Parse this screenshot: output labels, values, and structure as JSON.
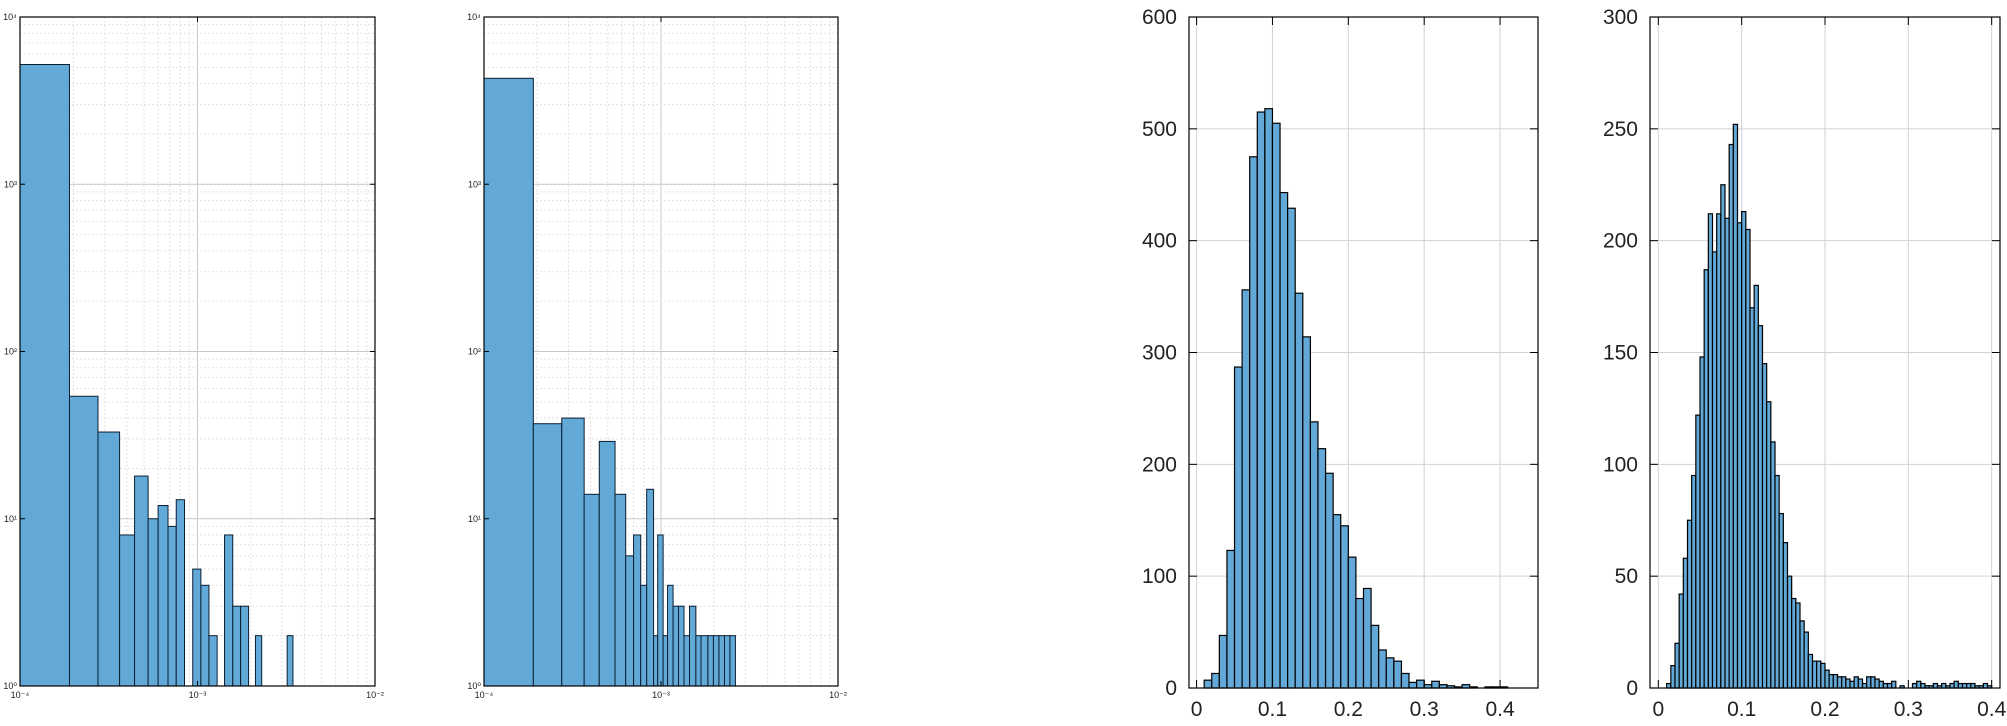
{
  "chart_data": [
    {
      "type": "bar",
      "xscale": "log",
      "yscale": "log",
      "xlim": [
        0.0001,
        0.01
      ],
      "ylim": [
        1,
        10000
      ],
      "grid": true,
      "color": "#62a9d8",
      "edge_color": "#0b1f33",
      "x_ticks": [
        {
          "value": 0.0001,
          "label": "10⁻⁴"
        },
        {
          "value": 0.001,
          "label": "10⁻³"
        },
        {
          "value": 0.01,
          "label": "10⁻²"
        }
      ],
      "y_ticks": [
        {
          "value": 1,
          "label": "10⁰"
        },
        {
          "value": 10,
          "label": "10¹"
        },
        {
          "value": 100,
          "label": "10²"
        },
        {
          "value": 1000,
          "label": "10³"
        },
        {
          "value": 10000,
          "label": "10⁴"
        }
      ],
      "bins": [
        [
          0.0001,
          0.00019,
          5200
        ],
        [
          0.00019,
          0.000275,
          54
        ],
        [
          0.000275,
          0.000364,
          33
        ],
        [
          0.000364,
          0.000442,
          8
        ],
        [
          0.000442,
          0.000527,
          18
        ],
        [
          0.000527,
          0.0006,
          10
        ],
        [
          0.0006,
          0.000682,
          12
        ],
        [
          0.000682,
          0.000759,
          9
        ],
        [
          0.000759,
          0.000845,
          13
        ],
        [
          0.000845,
          0.00094,
          1
        ],
        [
          0.00094,
          0.001045,
          5
        ],
        [
          0.001045,
          0.00116,
          4
        ],
        [
          0.00116,
          0.00129,
          2
        ],
        [
          0.00129,
          0.00142,
          1
        ],
        [
          0.00142,
          0.00158,
          8
        ],
        [
          0.00158,
          0.00175,
          3
        ],
        [
          0.00175,
          0.00194,
          3
        ],
        [
          0.00194,
          0.00212,
          1
        ],
        [
          0.00212,
          0.0023,
          2
        ],
        [
          0.0023,
          0.0032,
          1
        ],
        [
          0.0032,
          0.00345,
          2
        ]
      ]
    },
    {
      "type": "bar",
      "xscale": "log",
      "yscale": "log",
      "xlim": [
        0.0001,
        0.01
      ],
      "ylim": [
        1,
        10000
      ],
      "grid": true,
      "color": "#62a9d8",
      "edge_color": "#0b1f33",
      "x_ticks": [
        {
          "value": 0.0001,
          "label": "10⁻⁴"
        },
        {
          "value": 0.001,
          "label": "10⁻³"
        },
        {
          "value": 0.01,
          "label": "10⁻²"
        }
      ],
      "y_ticks": [
        {
          "value": 1,
          "label": "10⁰"
        },
        {
          "value": 10,
          "label": "10¹"
        },
        {
          "value": 100,
          "label": "10²"
        },
        {
          "value": 1000,
          "label": "10³"
        },
        {
          "value": 10000,
          "label": "10⁴"
        }
      ],
      "bins": [
        [
          0.0001,
          0.00019,
          4300
        ],
        [
          0.00019,
          0.000275,
          37
        ],
        [
          0.000275,
          0.000368,
          40
        ],
        [
          0.000368,
          0.000448,
          14
        ],
        [
          0.000448,
          0.00055,
          29
        ],
        [
          0.00055,
          0.000632,
          14
        ],
        [
          0.000632,
          0.0007,
          6
        ],
        [
          0.0007,
          0.000768,
          8
        ],
        [
          0.000768,
          0.00083,
          4
        ],
        [
          0.00083,
          0.000908,
          15
        ],
        [
          0.000908,
          0.000958,
          2
        ],
        [
          0.000958,
          0.001028,
          8
        ],
        [
          0.001028,
          0.001089,
          2
        ],
        [
          0.001089,
          0.00117,
          4
        ],
        [
          0.00117,
          0.001256,
          3
        ],
        [
          0.001256,
          0.001349,
          3
        ],
        [
          0.001349,
          0.001449,
          2
        ],
        [
          0.001449,
          0.001574,
          3
        ],
        [
          0.001574,
          0.001683,
          2
        ],
        [
          0.001683,
          0.001841,
          2
        ],
        [
          0.001841,
          0.001978,
          2
        ],
        [
          0.001978,
          0.002125,
          2
        ],
        [
          0.002125,
          0.002284,
          2
        ],
        [
          0.002284,
          0.002452,
          2
        ],
        [
          0.002452,
          0.002633,
          2
        ]
      ]
    },
    {
      "type": "bar",
      "xscale": "linear",
      "yscale": "linear",
      "xlim": [
        -0.01,
        0.45
      ],
      "ylim": [
        0,
        600
      ],
      "grid": true,
      "color": "#62a9d8",
      "edge_color": "#000000",
      "bin_start": 0.0,
      "bin_width": 0.01,
      "x_ticks": [
        {
          "value": 0,
          "label": "0"
        },
        {
          "value": 0.1,
          "label": "0.1"
        },
        {
          "value": 0.2,
          "label": "0.2"
        },
        {
          "value": 0.3,
          "label": "0.3"
        },
        {
          "value": 0.4,
          "label": "0.4"
        }
      ],
      "y_ticks": [
        {
          "value": 0,
          "label": "0"
        },
        {
          "value": 100,
          "label": "100"
        },
        {
          "value": 200,
          "label": "200"
        },
        {
          "value": 300,
          "label": "300"
        },
        {
          "value": 400,
          "label": "400"
        },
        {
          "value": 500,
          "label": "500"
        },
        {
          "value": 600,
          "label": "600"
        }
      ],
      "counts": [
        0,
        7,
        13,
        47,
        123,
        287,
        356,
        475,
        515,
        518,
        505,
        443,
        429,
        353,
        314,
        238,
        214,
        192,
        155,
        145,
        117,
        80,
        89,
        56,
        34,
        27,
        24,
        13,
        5,
        7,
        3,
        6,
        3,
        2,
        1,
        3,
        1,
        0,
        1,
        1,
        1
      ]
    },
    {
      "type": "bar",
      "xscale": "linear",
      "yscale": "linear",
      "xlim": [
        -0.01,
        0.41
      ],
      "ylim": [
        0,
        300
      ],
      "grid": true,
      "color": "#62a9d8",
      "edge_color": "#000000",
      "bin_start": 0.0,
      "bin_width": 0.005,
      "x_ticks": [
        {
          "value": 0,
          "label": "0"
        },
        {
          "value": 0.1,
          "label": "0.1"
        },
        {
          "value": 0.2,
          "label": "0.2"
        },
        {
          "value": 0.3,
          "label": "0.3"
        },
        {
          "value": 0.4,
          "label": "0.4"
        }
      ],
      "y_ticks": [
        {
          "value": 0,
          "label": "0"
        },
        {
          "value": 50,
          "label": "50"
        },
        {
          "value": 100,
          "label": "100"
        },
        {
          "value": 150,
          "label": "150"
        },
        {
          "value": 200,
          "label": "200"
        },
        {
          "value": 250,
          "label": "250"
        },
        {
          "value": 300,
          "label": "300"
        }
      ],
      "counts": [
        0,
        0,
        2,
        10,
        20,
        42,
        58,
        75,
        95,
        122,
        148,
        187,
        212,
        195,
        212,
        225,
        210,
        243,
        252,
        208,
        213,
        205,
        170,
        180,
        162,
        145,
        128,
        110,
        95,
        78,
        65,
        50,
        40,
        38,
        30,
        25,
        15,
        12,
        12,
        11,
        8,
        6,
        6,
        5,
        5,
        4,
        3,
        5,
        4,
        2,
        5,
        5,
        4,
        3,
        2,
        2,
        3,
        0,
        1,
        0,
        0,
        2,
        3,
        2,
        1,
        1,
        2,
        1,
        2,
        1,
        2,
        3,
        2,
        2,
        2,
        2,
        1,
        1,
        2,
        1
      ]
    }
  ]
}
